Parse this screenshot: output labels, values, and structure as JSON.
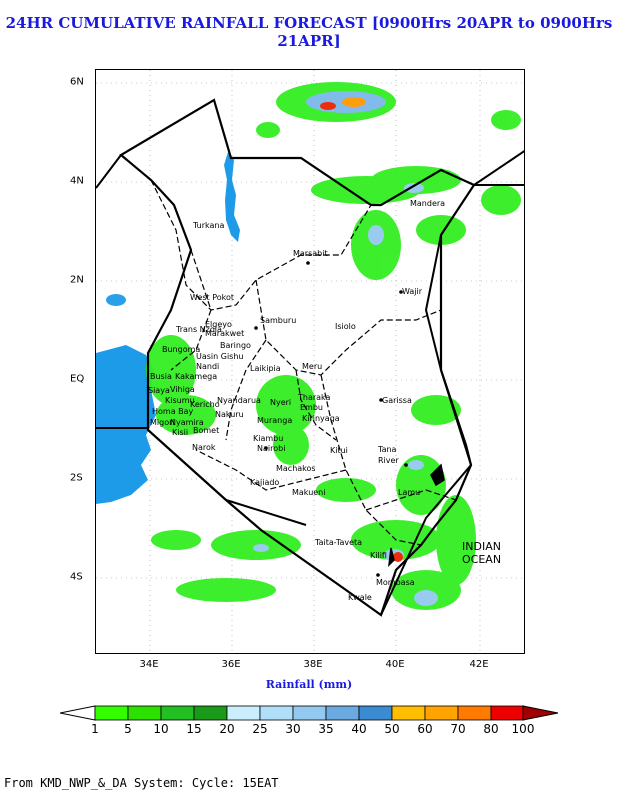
{
  "title": "24HR CUMULATIVE RAINFALL FORECAST [0900Hrs 20APR to 0900Hrs 21APR]",
  "x_axis": {
    "title": "Rainfall (mm)",
    "ticks": [
      "34E",
      "36E",
      "38E",
      "40E",
      "42E"
    ]
  },
  "y_axis": {
    "ticks": [
      "6N",
      "4N",
      "2N",
      "EQ",
      "2S",
      "4S"
    ]
  },
  "ocean_label": [
    "INDIAN",
    "OCEAN"
  ],
  "counties": [
    "Turkana",
    "Marsabit",
    "Mandera",
    "Wajir",
    "West Pokot",
    "Samburu",
    "Isiolo",
    "Elgeyo Marakwet",
    "Baringo",
    "Trans Nzoia",
    "Bungoma",
    "Uasin Gishu",
    "Laikipia",
    "Meru",
    "Nandi",
    "Kakamega",
    "Busia",
    "Vihiga",
    "Kisumu",
    "Siaya",
    "Nyandarua",
    "Tharaka",
    "Embu",
    "Nakuru",
    "Kericho",
    "Bomet",
    "Nyamira",
    "Kisii",
    "Migori",
    "Homa Bay",
    "Nyeri",
    "Muranga",
    "Kirinyaga",
    "Kiambu",
    "Nairobi",
    "Machakos",
    "Kitui",
    "Garissa",
    "Narok",
    "Kajiado",
    "Makueni",
    "Tana River",
    "Lamu",
    "Taita-Taveta",
    "Kilifi",
    "Mombasa",
    "Kwale"
  ],
  "colorbar": {
    "labels": [
      "1",
      "5",
      "10",
      "15",
      "20",
      "25",
      "30",
      "35",
      "40",
      "50",
      "60",
      "70",
      "80",
      "100"
    ],
    "colors": [
      "#33ff00",
      "#2de000",
      "#22bf22",
      "#1a991a",
      "#cbeefc",
      "#b0dff9",
      "#93c9ef",
      "#6aaae0",
      "#3a8bd1",
      "#ffbf00",
      "#ffa400",
      "#ff7a00",
      "#ee0000"
    ]
  },
  "footer": "From KMD_NWP_&_DA System: Cycle: 15EAT"
}
